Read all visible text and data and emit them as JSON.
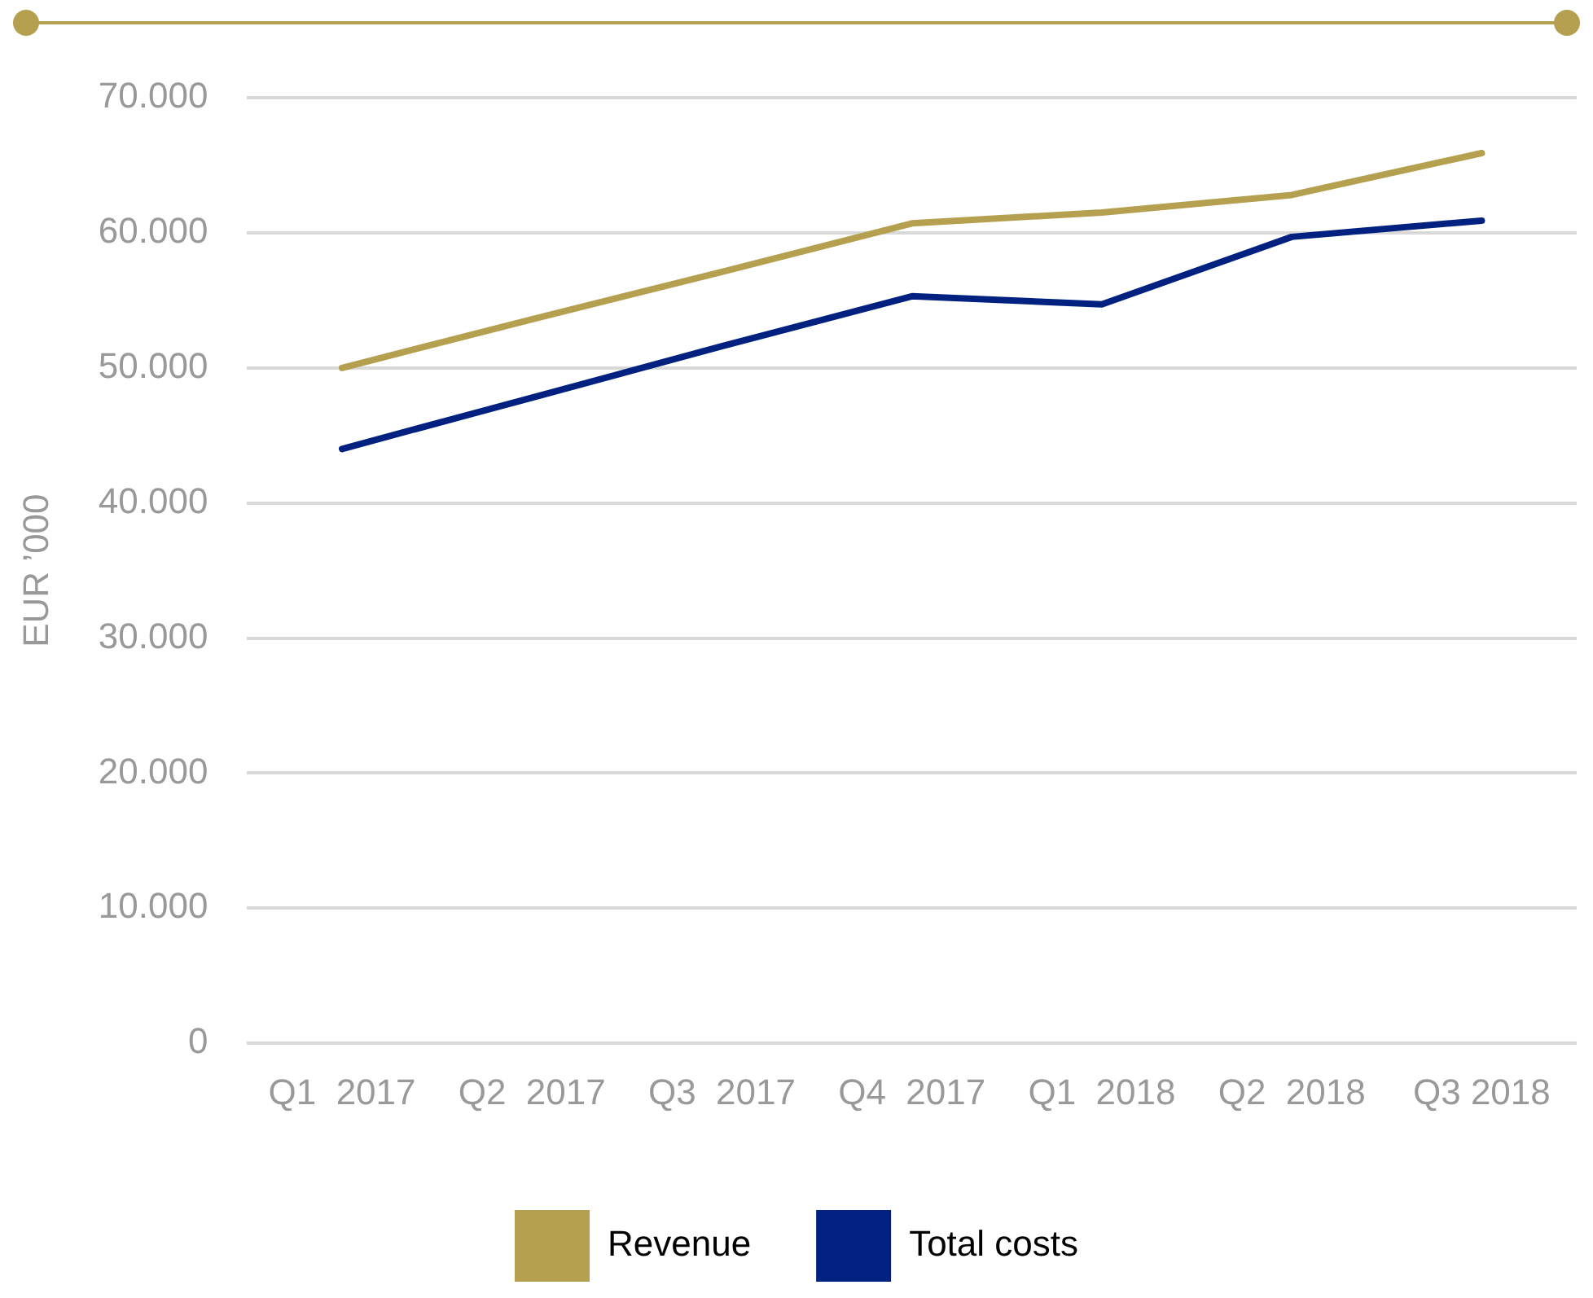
{
  "chart_data": {
    "type": "line",
    "ylabel": "EUR ’000",
    "categories": [
      "Q1  2017",
      "Q2  2017",
      "Q3  2017",
      "Q4  2017",
      "Q1  2018",
      "Q2  2018",
      "Q3 2018"
    ],
    "series": [
      {
        "name": "Revenue",
        "color": "#b5a050",
        "values": [
          50000,
          53600,
          57100,
          60700,
          61500,
          62800,
          65900
        ]
      },
      {
        "name": "Total costs",
        "color": "#00217f",
        "values": [
          44000,
          47800,
          51600,
          55300,
          54700,
          59700,
          60900
        ]
      }
    ],
    "ylim": [
      0,
      70000
    ],
    "yticks": [
      {
        "value": 0,
        "label": "0"
      },
      {
        "value": 10000,
        "label": "10.000"
      },
      {
        "value": 20000,
        "label": "20.000"
      },
      {
        "value": 30000,
        "label": "30.000"
      },
      {
        "value": 40000,
        "label": "40.000"
      },
      {
        "value": 50000,
        "label": "50.000"
      },
      {
        "value": 60000,
        "label": "60.000"
      },
      {
        "value": 70000,
        "label": "70.000"
      }
    ],
    "grid": "y",
    "legend": "bottom",
    "marker": "none",
    "line_style": "solid"
  }
}
